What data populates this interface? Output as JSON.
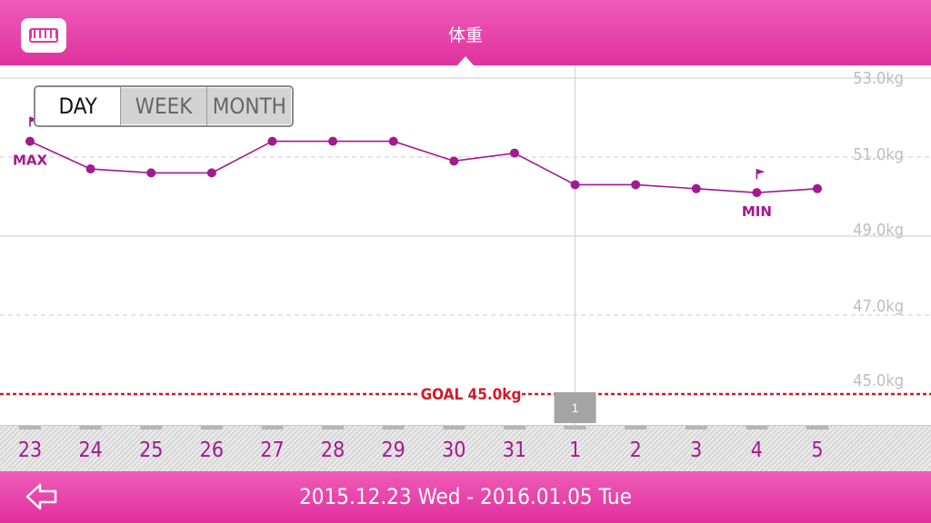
{
  "header": {
    "title": "体重",
    "menu_icon": "scale-icon"
  },
  "toggle": {
    "options": [
      "DAY",
      "WEEK",
      "MONTH"
    ],
    "selected": "DAY"
  },
  "y_axis": {
    "labels": [
      "53.0kg",
      "51.0kg",
      "49.0kg",
      "47.0kg",
      "45.0kg"
    ]
  },
  "goal": {
    "label": "GOAL 45.0kg",
    "value": 45.0
  },
  "chart_data": {
    "type": "line",
    "x": [
      "23",
      "24",
      "25",
      "26",
      "27",
      "28",
      "29",
      "30",
      "31",
      "1",
      "2",
      "3",
      "4",
      "5"
    ],
    "y": [
      51.4,
      50.7,
      50.6,
      50.6,
      51.4,
      51.4,
      51.4,
      50.9,
      51.1,
      50.3,
      50.3,
      50.2,
      50.1,
      50.2
    ],
    "ylim": [
      44.2,
      53.8
    ],
    "max_label": "MAX",
    "min_label": "MIN",
    "marker_index": 9,
    "marker_label": "1",
    "colors": {
      "line": "#a3198f",
      "goal": "#d21a2a",
      "grid": "#c8c8c8"
    }
  },
  "footer": {
    "range": "2015.12.23 Wed - 2016.01.05 Tue",
    "back_icon": "back-arrow-icon"
  }
}
